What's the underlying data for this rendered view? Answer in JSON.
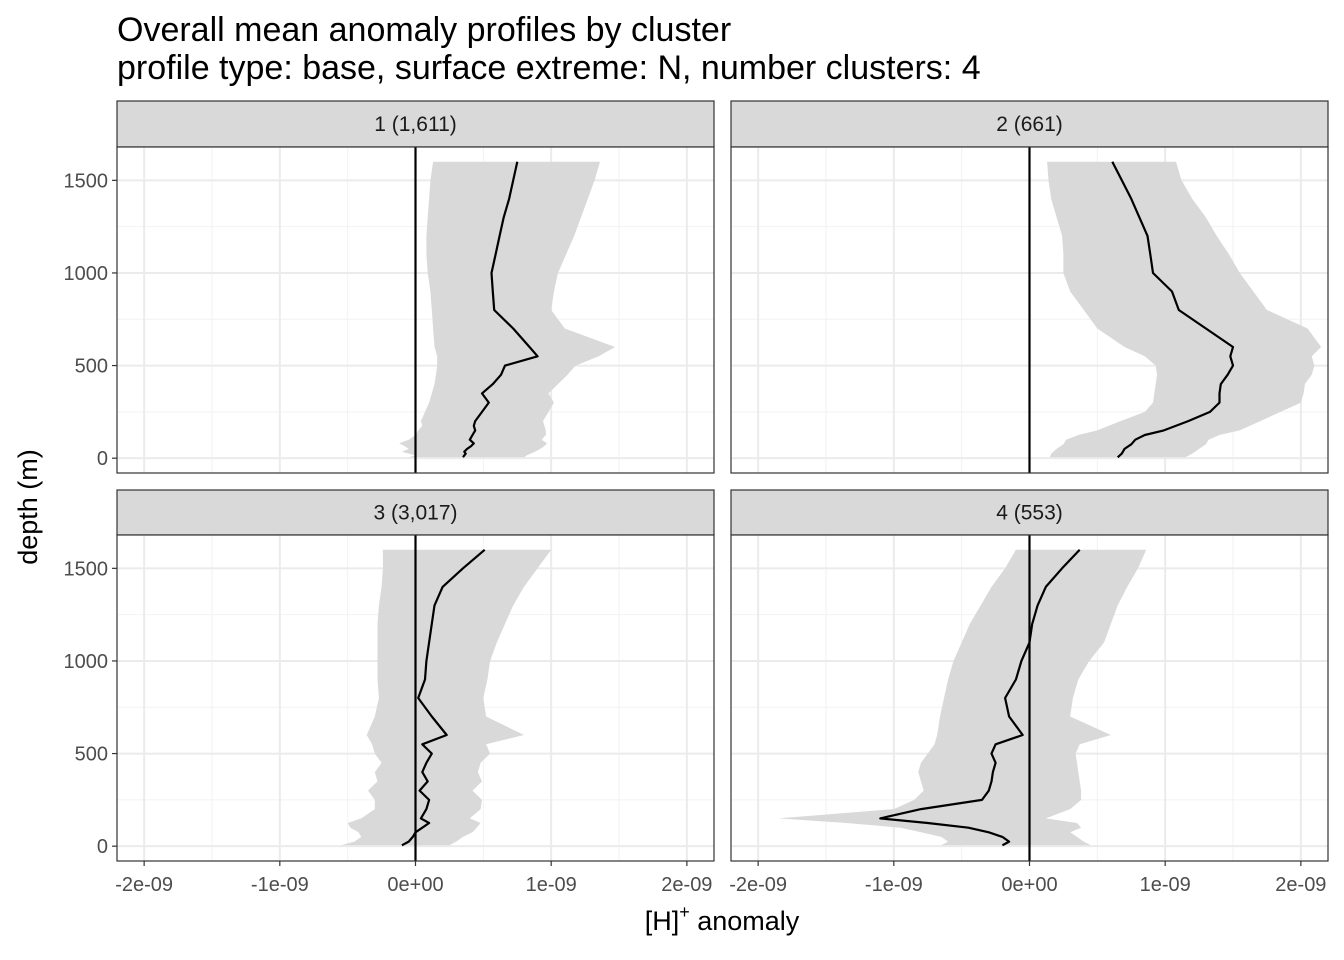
{
  "chart_data": {
    "type": "line",
    "title": "Overall mean anomaly profiles by cluster",
    "subtitle": "profile type: base, surface extreme: N, number clusters: 4",
    "xlabel": {
      "base": "[H]",
      "sup": "+",
      "rest": " anomaly"
    },
    "ylabel": "depth (m)",
    "xlim": [
      -2.2e-09,
      2.2e-09
    ],
    "ylim": [
      1680,
      -80
    ],
    "x_ticks": [
      -2e-09,
      -1e-09,
      0,
      1e-09,
      2e-09
    ],
    "x_tick_labels": [
      "-2e-09",
      "-1e-09",
      "0e+00",
      "1e-09",
      "2e-09"
    ],
    "y_ticks": [
      0,
      500,
      1000,
      1500
    ],
    "y_tick_labels": [
      "0",
      "500",
      "1000",
      "1500"
    ],
    "reference_line_x": 0,
    "band_color": "#d9d9d9",
    "line_color": "#000000",
    "panels": [
      {
        "strip_label": "1 (1,611)",
        "depth": [
          5,
          15,
          25,
          35,
          50,
          65,
          80,
          100,
          125,
          150,
          175,
          200,
          250,
          300,
          350,
          400,
          450,
          500,
          550,
          600,
          700,
          800,
          900,
          1000,
          1100,
          1200,
          1300,
          1400,
          1500,
          1600
        ],
        "mean": [
          3.5e-10,
          3.6e-10,
          3.7e-10,
          3.6e-10,
          3.8e-10,
          4.1e-10,
          4.3e-10,
          4e-10,
          4.2e-10,
          4.4e-10,
          4.3e-10,
          4.4e-10,
          4.9e-10,
          5.4e-10,
          4.9e-10,
          5.7e-10,
          6.3e-10,
          6.6e-10,
          9e-10,
          8.4e-10,
          7.2e-10,
          5.8e-10,
          5.7e-10,
          5.6e-10,
          5.9e-10,
          6.2e-10,
          6.5e-10,
          6.9e-10,
          7.2e-10,
          7.5e-10
        ],
        "lower": [
          -5e-11,
          0.0,
          -5e-11,
          -1e-10,
          -5e-11,
          -8e-11,
          -1.2e-10,
          -5e-11,
          0.0,
          2e-11,
          5e-11,
          4e-11,
          7e-11,
          1e-10,
          1.2e-10,
          1.4e-10,
          1.5e-10,
          1.6e-10,
          1.6e-10,
          1.4e-10,
          1.3e-10,
          1.2e-10,
          1.1e-10,
          9e-11,
          8e-11,
          8e-11,
          9e-11,
          1e-10,
          1.1e-10,
          1.3e-10
        ],
        "upper": [
          8e-10,
          8.2e-10,
          8.5e-10,
          8.8e-10,
          9.2e-10,
          9.5e-10,
          9.7e-10,
          9.3e-10,
          9.6e-10,
          9.6e-10,
          9.5e-10,
          9.4e-10,
          9.8e-10,
          1.02e-09,
          9.8e-10,
          1.05e-09,
          1.12e-09,
          1.18e-09,
          1.35e-09,
          1.47e-09,
          1.1e-09,
          1e-09,
          1.02e-09,
          1.05e-09,
          1.11e-09,
          1.17e-09,
          1.22e-09,
          1.27e-09,
          1.32e-09,
          1.36e-09
        ]
      },
      {
        "strip_label": "2 (661)",
        "depth": [
          5,
          25,
          50,
          75,
          100,
          125,
          150,
          200,
          250,
          300,
          350,
          400,
          450,
          500,
          550,
          600,
          700,
          800,
          900,
          1000,
          1100,
          1200,
          1300,
          1400,
          1500,
          1600
        ],
        "mean": [
          6.5e-10,
          6.8e-10,
          7e-10,
          7.5e-10,
          7.8e-10,
          8.5e-10,
          9.9e-10,
          1.17e-09,
          1.33e-09,
          1.4e-09,
          1.4e-09,
          1.41e-09,
          1.46e-09,
          1.5e-09,
          1.48e-09,
          1.5e-09,
          1.3e-09,
          1.1e-09,
          1.05e-09,
          9.1e-10,
          8.9e-10,
          8.7e-10,
          8.1e-10,
          7.5e-10,
          6.8e-10,
          6.1e-10
        ],
        "lower": [
          1.5e-10,
          1.6e-10,
          2e-10,
          2.5e-10,
          2.7e-10,
          3.6e-10,
          5e-10,
          6.7e-10,
          8.5e-10,
          9.1e-10,
          9.2e-10,
          9.3e-10,
          9.4e-10,
          9.3e-10,
          8.5e-10,
          7e-10,
          5e-10,
          4e-10,
          3e-10,
          2.5e-10,
          2.5e-10,
          2.4e-10,
          2e-10,
          1.6e-10,
          1.4e-10,
          1.3e-10
        ],
        "upper": [
          1.15e-09,
          1.2e-09,
          1.25e-09,
          1.3e-09,
          1.32e-09,
          1.4e-09,
          1.55e-09,
          1.7e-09,
          1.85e-09,
          2e-09,
          2.02e-09,
          2.03e-09,
          2.08e-09,
          2.1e-09,
          2.08e-09,
          2.15e-09,
          2.05e-09,
          1.75e-09,
          1.65e-09,
          1.55e-09,
          1.47e-09,
          1.38e-09,
          1.3e-09,
          1.2e-09,
          1.12e-09,
          1.08e-09
        ]
      },
      {
        "strip_label": "3 (3,017)",
        "depth": [
          5,
          25,
          50,
          75,
          100,
          125,
          150,
          200,
          250,
          300,
          350,
          400,
          450,
          500,
          550,
          600,
          700,
          800,
          900,
          1000,
          1100,
          1200,
          1300,
          1400,
          1500,
          1600
        ],
        "mean": [
          -1e-10,
          -5e-11,
          -2e-11,
          0.0,
          5e-11,
          1e-10,
          4e-11,
          8e-11,
          1e-10,
          3e-11,
          9e-11,
          5e-11,
          8e-11,
          1.2e-10,
          5e-11,
          2.3e-10,
          1.2e-10,
          2e-11,
          7e-11,
          8e-11,
          1e-10,
          1.2e-10,
          1.4e-10,
          2e-10,
          3.5e-10,
          5.1e-10
        ],
        "lower": [
          -5.5e-10,
          -4.5e-10,
          -4e-10,
          -4.2e-10,
          -4.8e-10,
          -5e-10,
          -4e-10,
          -3e-10,
          -3e-10,
          -3.5e-10,
          -2.8e-10,
          -3e-10,
          -2.5e-10,
          -3e-10,
          -3.2e-10,
          -3.6e-10,
          -3e-10,
          -2.7e-10,
          -2.8e-10,
          -2.8e-10,
          -2.8e-10,
          -2.8e-10,
          -2.7e-10,
          -2.5e-10,
          -2.4e-10,
          -2.4e-10
        ],
        "upper": [
          2.5e-10,
          3e-10,
          3.5e-10,
          4.2e-10,
          4.5e-10,
          4.8e-10,
          4e-10,
          4.8e-10,
          4.9e-10,
          4.2e-10,
          4.9e-10,
          4.6e-10,
          4.8e-10,
          5.5e-10,
          5.2e-10,
          8e-10,
          5.2e-10,
          5e-10,
          5.3e-10,
          5.5e-10,
          6e-10,
          6.6e-10,
          7.2e-10,
          8e-10,
          9e-10,
          1e-09
        ]
      },
      {
        "strip_label": "4 (553)",
        "depth": [
          5,
          25,
          50,
          75,
          100,
          125,
          150,
          200,
          250,
          300,
          350,
          400,
          450,
          500,
          550,
          600,
          700,
          800,
          900,
          1000,
          1100,
          1200,
          1300,
          1400,
          1500,
          1600
        ],
        "mean": [
          -2e-10,
          -1.5e-10,
          -2e-10,
          -3e-10,
          -4.5e-10,
          -7.5e-10,
          -1.1e-09,
          -8e-10,
          -3.5e-10,
          -3e-10,
          -2.8e-10,
          -2.7e-10,
          -2.5e-10,
          -2.8e-10,
          -2.5e-10,
          -5e-11,
          -1.5e-10,
          -1.8e-10,
          -1e-10,
          -6e-11,
          0.0,
          2e-11,
          6e-11,
          1.2e-10,
          2.4e-10,
          3.7e-10
        ],
        "lower": [
          -6.5e-10,
          -6e-10,
          -6.5e-10,
          -8e-10,
          -9.5e-10,
          -1.35e-09,
          -1.85e-09,
          -1e-09,
          -8.5e-10,
          -7.8e-10,
          -8e-10,
          -8.2e-10,
          -8e-10,
          -7.5e-10,
          -7e-10,
          -6.8e-10,
          -6.6e-10,
          -6.3e-10,
          -6e-10,
          -5.6e-10,
          -5e-10,
          -4.4e-10,
          -3.6e-10,
          -2.8e-10,
          -1.8e-10,
          -1e-10
        ],
        "upper": [
          4.5e-10,
          4e-10,
          3.5e-10,
          3e-10,
          3.8e-10,
          3.5e-10,
          1.2e-10,
          3e-10,
          3.8e-10,
          3.8e-10,
          3.7e-10,
          3.6e-10,
          3.5e-10,
          3.4e-10,
          3.7e-10,
          6e-10,
          3e-10,
          3.2e-10,
          3.6e-10,
          4.4e-10,
          5.5e-10,
          6e-10,
          6.5e-10,
          7.2e-10,
          8e-10,
          8.6e-10
        ]
      }
    ]
  }
}
